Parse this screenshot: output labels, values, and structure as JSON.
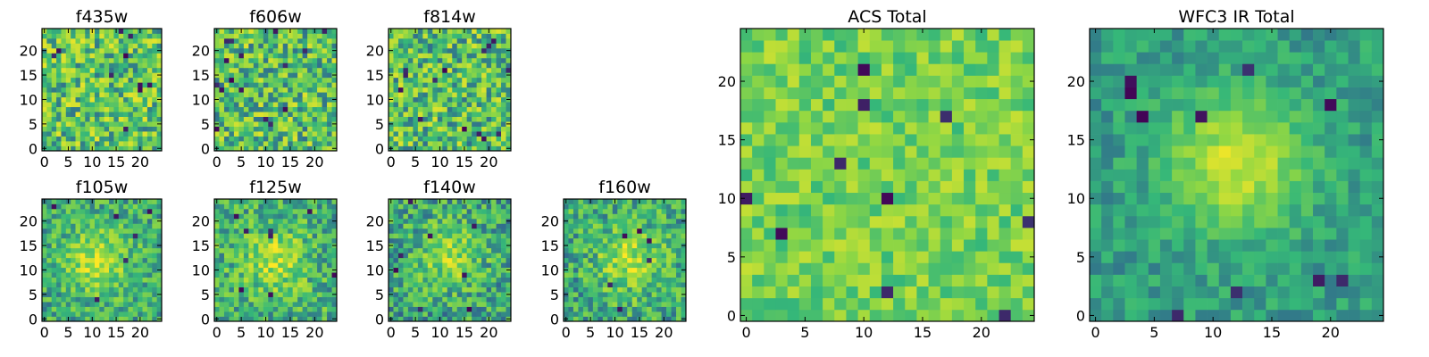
{
  "figure": {
    "colormap": [
      "#440154",
      "#31688e",
      "#35b779",
      "#90d743",
      "#fde725"
    ]
  },
  "chart_data": [
    {
      "type": "heatmap",
      "title": "f435w",
      "grid": 25,
      "xticks": [
        "0",
        "5",
        "10",
        "15",
        "20"
      ],
      "yticks": [
        "0",
        "5",
        "10",
        "15",
        "20"
      ],
      "xlim": [
        0,
        25
      ],
      "ylim": [
        0,
        25
      ],
      "seed": 11,
      "noise": 0.55,
      "blob": 0.0,
      "blob_center": [
        12,
        12
      ],
      "blob_sigma": 5,
      "base": 0.62,
      "dark_spots": 10
    },
    {
      "type": "heatmap",
      "title": "f606w",
      "grid": 25,
      "xticks": [
        "0",
        "5",
        "10",
        "15",
        "20"
      ],
      "yticks": [
        "0",
        "5",
        "10",
        "15",
        "20"
      ],
      "xlim": [
        0,
        25
      ],
      "ylim": [
        0,
        25
      ],
      "seed": 23,
      "noise": 0.55,
      "blob": 0.0,
      "blob_center": [
        12,
        12
      ],
      "blob_sigma": 5,
      "base": 0.6,
      "dark_spots": 16
    },
    {
      "type": "heatmap",
      "title": "f814w",
      "grid": 25,
      "xticks": [
        "0",
        "5",
        "10",
        "15",
        "20"
      ],
      "yticks": [
        "0",
        "5",
        "10",
        "15",
        "20"
      ],
      "xlim": [
        0,
        25
      ],
      "ylim": [
        0,
        25
      ],
      "seed": 37,
      "noise": 0.55,
      "blob": 0.0,
      "blob_center": [
        12,
        12
      ],
      "blob_sigma": 5,
      "base": 0.6,
      "dark_spots": 14
    },
    {
      "type": "heatmap",
      "title": "f105w",
      "grid": 25,
      "xticks": [
        "0",
        "5",
        "10",
        "15",
        "20"
      ],
      "yticks": [
        "0",
        "5",
        "10",
        "15",
        "20"
      ],
      "xlim": [
        0,
        25
      ],
      "ylim": [
        0,
        25
      ],
      "seed": 41,
      "noise": 0.38,
      "blob": 0.35,
      "blob_center": [
        11,
        12
      ],
      "blob_sigma": 4.5,
      "base": 0.5,
      "dark_spots": 6
    },
    {
      "type": "heatmap",
      "title": "f125w",
      "grid": 25,
      "xticks": [
        "0",
        "5",
        "10",
        "15",
        "20"
      ],
      "yticks": [
        "0",
        "5",
        "10",
        "15",
        "20"
      ],
      "xlim": [
        0,
        25
      ],
      "ylim": [
        0,
        25
      ],
      "seed": 53,
      "noise": 0.42,
      "blob": 0.3,
      "blob_center": [
        12,
        12
      ],
      "blob_sigma": 4.5,
      "base": 0.52,
      "dark_spots": 8
    },
    {
      "type": "heatmap",
      "title": "f140w",
      "grid": 25,
      "xticks": [
        "0",
        "5",
        "10",
        "15",
        "20"
      ],
      "yticks": [
        "0",
        "5",
        "10",
        "15",
        "20"
      ],
      "xlim": [
        0,
        25
      ],
      "ylim": [
        0,
        25
      ],
      "seed": 67,
      "noise": 0.42,
      "blob": 0.3,
      "blob_center": [
        12,
        13
      ],
      "blob_sigma": 4.5,
      "base": 0.48,
      "dark_spots": 8
    },
    {
      "type": "heatmap",
      "title": "f160w",
      "grid": 25,
      "xticks": [
        "0",
        "5",
        "10",
        "15",
        "20"
      ],
      "yticks": [
        "0",
        "5",
        "10",
        "15",
        "20"
      ],
      "xlim": [
        0,
        25
      ],
      "ylim": [
        0,
        25
      ],
      "seed": 79,
      "noise": 0.42,
      "blob": 0.32,
      "blob_center": [
        13,
        12
      ],
      "blob_sigma": 4.5,
      "base": 0.5,
      "dark_spots": 6
    },
    {
      "type": "heatmap",
      "title": "ACS Total",
      "grid": 25,
      "xticks": [
        "0",
        "5",
        "10",
        "15",
        "20"
      ],
      "yticks": [
        "0",
        "5",
        "10",
        "15",
        "20"
      ],
      "xlim": [
        0,
        25
      ],
      "ylim": [
        0,
        25
      ],
      "seed": 97,
      "noise": 0.32,
      "blob": 0.0,
      "blob_center": [
        12,
        12
      ],
      "blob_sigma": 5,
      "base": 0.68,
      "dark_spots": 10
    },
    {
      "type": "heatmap",
      "title": "WFC3 IR Total",
      "grid": 25,
      "xticks": [
        "0",
        "5",
        "10",
        "15",
        "20"
      ],
      "yticks": [
        "0",
        "5",
        "10",
        "15",
        "20"
      ],
      "xlim": [
        0,
        25
      ],
      "ylim": [
        0,
        25
      ],
      "seed": 113,
      "noise": 0.2,
      "blob": 0.45,
      "blob_center": [
        12,
        13
      ],
      "blob_sigma": 4,
      "base": 0.42,
      "dark_spots": 10
    }
  ]
}
